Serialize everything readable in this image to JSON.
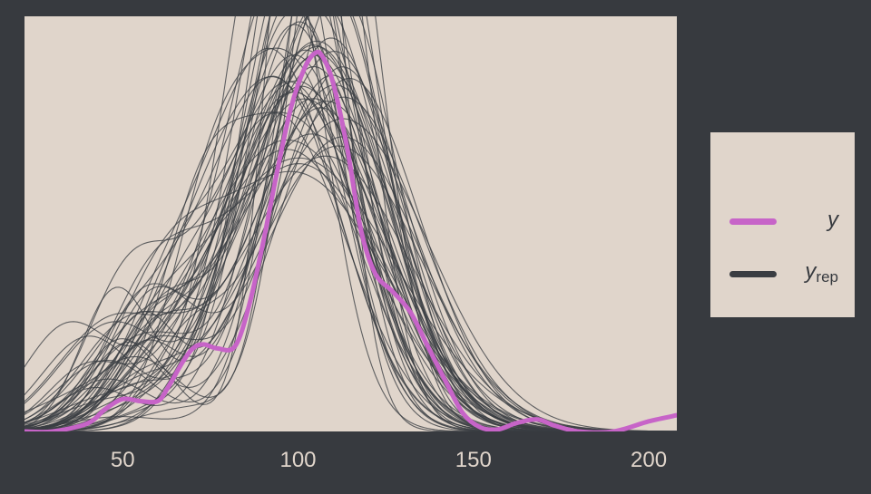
{
  "chart_data": {
    "type": "line",
    "title": "",
    "xlabel": "",
    "ylabel": "",
    "xlim": [
      22,
      208
    ],
    "ylim": [
      0,
      0.0205
    ],
    "xticks": [
      "50",
      "100",
      "150",
      "200"
    ],
    "xtick_values": [
      50,
      100,
      150,
      200
    ],
    "grid": false,
    "legend_position": "right",
    "legend": {
      "y_label": "y",
      "yrep_base": "y",
      "yrep_sub": "rep"
    },
    "colors": {
      "background": "#373a3f",
      "panel": "#e0d5cb",
      "y": "#c764c8",
      "yrep": "#3a3d42",
      "tick_text": "#e0d5cb"
    },
    "y_series": {
      "name": "y",
      "x": [
        22,
        30,
        40,
        45,
        50,
        55,
        60,
        63,
        67,
        70,
        73,
        77,
        82,
        86,
        90,
        94,
        98,
        102,
        105,
        107,
        110,
        114,
        118,
        122,
        127,
        132,
        137,
        142,
        147,
        152,
        157,
        162,
        168,
        173,
        180,
        190,
        200,
        208
      ],
      "y": [
        0.0,
        0.0,
        0.0004,
        0.0011,
        0.0016,
        0.0015,
        0.0015,
        0.0022,
        0.0034,
        0.0041,
        0.0043,
        0.0041,
        0.0042,
        0.0062,
        0.0093,
        0.0128,
        0.016,
        0.018,
        0.0187,
        0.0185,
        0.0172,
        0.014,
        0.0099,
        0.0078,
        0.0069,
        0.0059,
        0.0042,
        0.0025,
        0.0009,
        0.0002,
        0.0001,
        0.0004,
        0.0006,
        0.0003,
        0.0,
        0.0,
        0.0005,
        0.0008
      ]
    },
    "yrep_count": 60
  }
}
